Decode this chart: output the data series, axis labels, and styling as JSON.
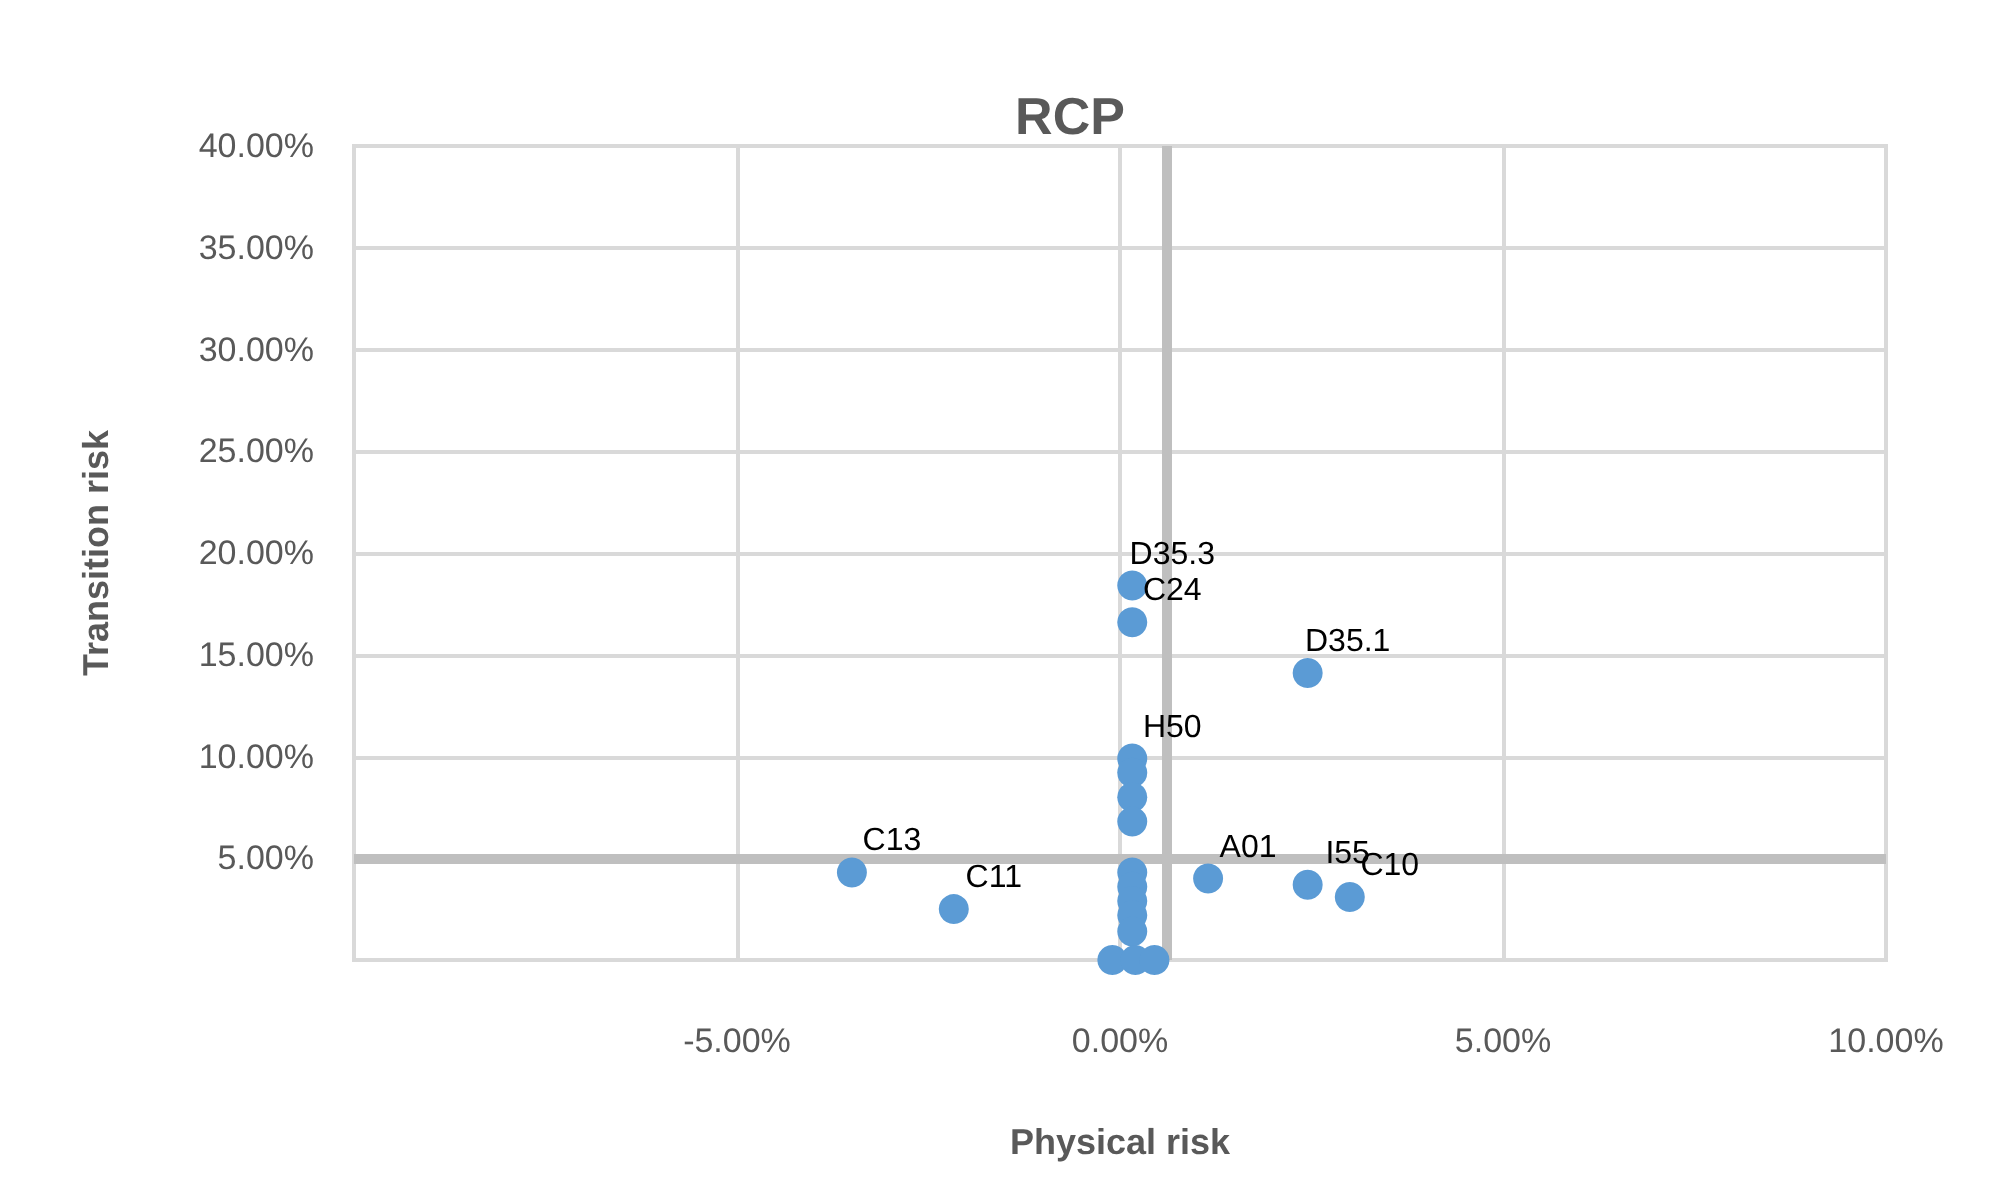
{
  "chart_data": {
    "type": "scatter",
    "title": "RCP",
    "xlabel": "Physical risk",
    "ylabel": "Transition risk",
    "x": [
      0.16,
      0.16,
      2.45,
      0.16,
      0.16,
      0.16,
      0.16,
      -3.5,
      -2.17,
      1.15,
      2.45,
      3.0,
      0.16,
      0.16,
      0.16,
      0.16,
      0.16,
      -0.1,
      0.2,
      0.45
    ],
    "series": [
      {
        "color": "#5b9bd5",
        "values": [
          18.4,
          16.6,
          14.1,
          9.9,
          9.2,
          8.0,
          6.8,
          4.3,
          2.5,
          4.0,
          3.7,
          3.1,
          4.3,
          3.6,
          2.9,
          2.2,
          1.4,
          0,
          0,
          0
        ]
      }
    ],
    "xlim": [
      -10,
      10
    ],
    "xticks": [
      {
        "value": -10,
        "label": null
      },
      {
        "value": -5,
        "label": "-5.00%"
      },
      {
        "value": 0,
        "label": "0.00%"
      },
      {
        "value": 5,
        "label": "5.00%"
      },
      {
        "value": 10,
        "label": "10.00%"
      }
    ],
    "ylim": [
      0,
      40
    ],
    "yticks": [
      {
        "value": 0,
        "label": null
      },
      {
        "value": 5,
        "label": "5.00%"
      },
      {
        "value": 10,
        "label": "10.00%"
      },
      {
        "value": 15,
        "label": "15.00%"
      },
      {
        "value": 20,
        "label": "20.00%"
      },
      {
        "value": 25,
        "label": "25.00%"
      },
      {
        "value": 30,
        "label": "30.00%"
      },
      {
        "value": 35,
        "label": "35.00%"
      },
      {
        "value": 40,
        "label": "40.00%"
      }
    ],
    "grid": true,
    "marker": "circle",
    "ref_lines": [
      {
        "axis": "x",
        "value": 0.6,
        "color": "#bfbfbf"
      },
      {
        "axis": "y",
        "value": 5,
        "color": "#bfbfbf"
      }
    ],
    "annotations": [
      {
        "text": "D35.3",
        "x": 0.16,
        "y": 18.4
      },
      {
        "text": "C24",
        "x": 0.16,
        "y": 16.6
      },
      {
        "text": "D35.1",
        "x": 2.45,
        "y": 14.1
      },
      {
        "text": "H50",
        "x": 0.16,
        "y": 9.9
      },
      {
        "text": "C13",
        "x": -3.5,
        "y": 4.3
      },
      {
        "text": "C11",
        "x": -2.17,
        "y": 2.5
      },
      {
        "text": "A01",
        "x": 1.15,
        "y": 4.0
      },
      {
        "text": "I55",
        "x": 2.45,
        "y": 3.7
      },
      {
        "text": "C10",
        "x": 3.0,
        "y": 3.1
      }
    ]
  }
}
